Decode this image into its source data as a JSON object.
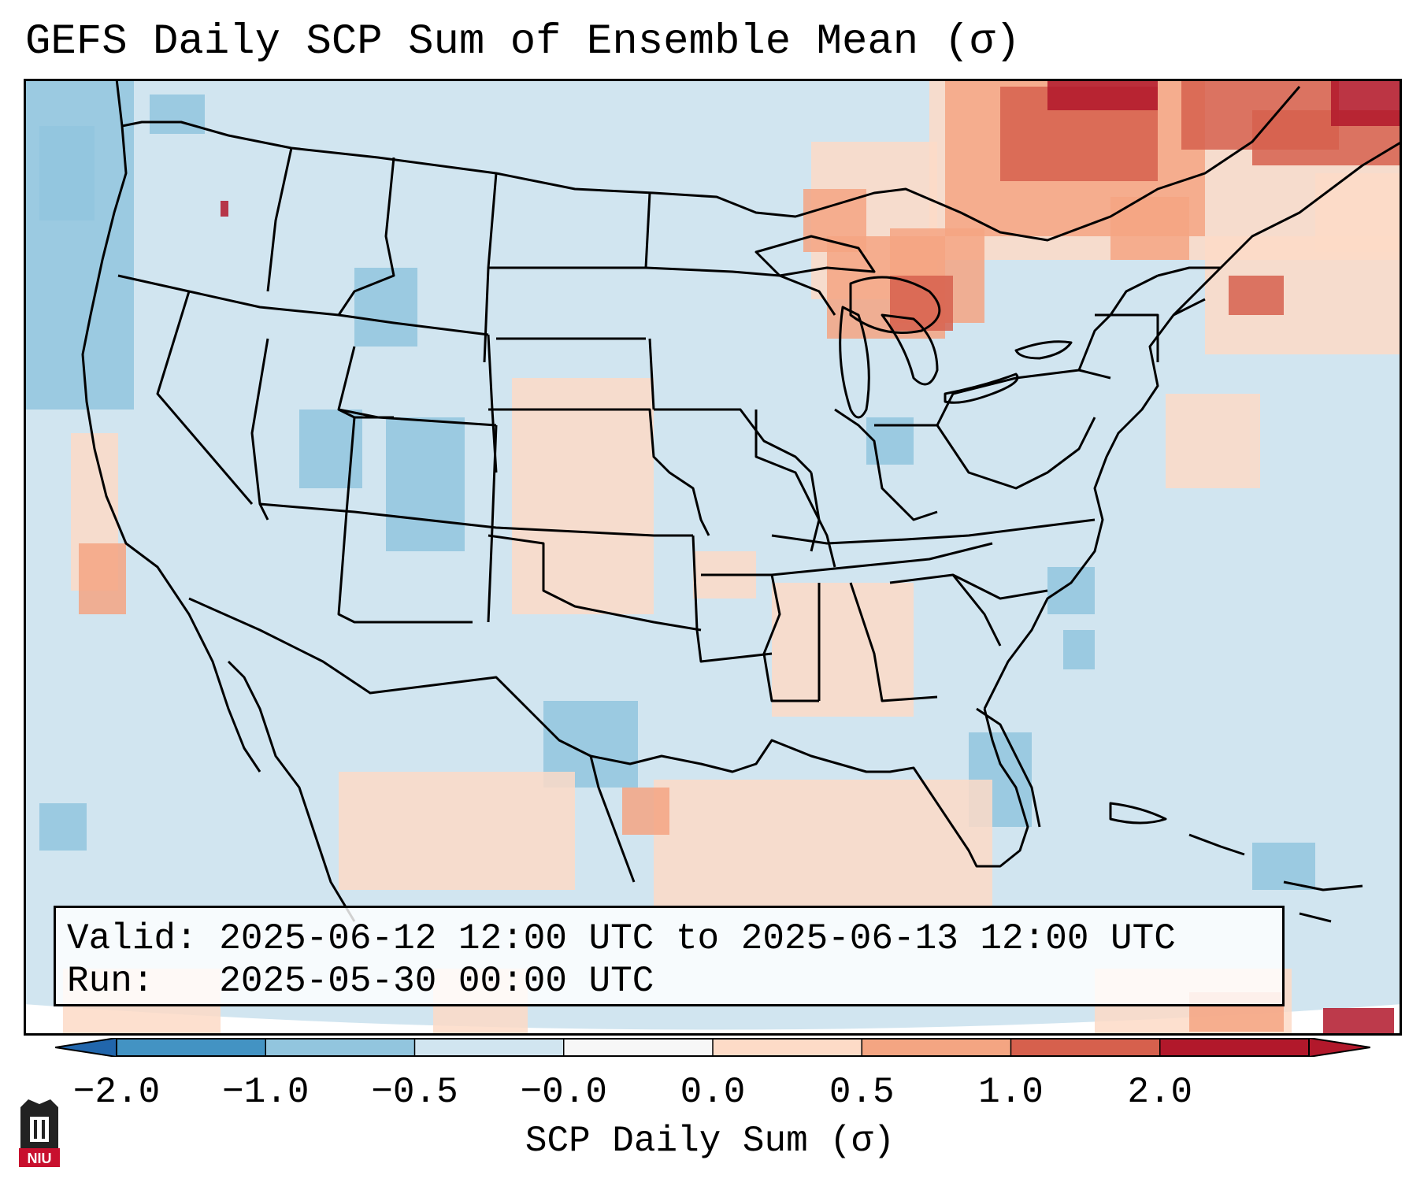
{
  "title": "GEFS Daily SCP Sum of Ensemble Mean (σ)",
  "info": {
    "valid_label": "Valid:",
    "valid_value": "2025-06-12 12:00 UTC to 2025-06-13 12:00 UTC",
    "run_label": "Run:",
    "run_value": "2025-05-30 00:00 UTC"
  },
  "colorbar": {
    "label": "SCP Daily Sum (σ)",
    "ticks": [
      "−2.0",
      "−1.0",
      "−0.5",
      "−0.0",
      "0.0",
      "0.5",
      "1.0",
      "2.0"
    ],
    "colors": [
      "#4393c3",
      "#92c5de",
      "#d1e5f0",
      "#f7f7f7",
      "#fddbc7",
      "#f4a582",
      "#d6604d",
      "#b2182b"
    ],
    "extend_low_color": "#2166ac",
    "extend_high_color": "#b2182b"
  },
  "logo": {
    "text": "NIU"
  },
  "colors": {
    "ocean_background": "#d1e5f0",
    "frame": "#000000",
    "border_lines": "#000000"
  }
}
